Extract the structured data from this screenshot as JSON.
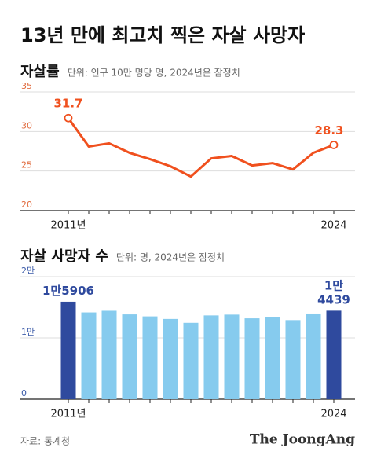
{
  "title": "13년 만에 최고치 찍은 자살 사망자",
  "chart_data": [
    {
      "type": "line",
      "title": "자살률",
      "subtitle": "단위: 인구 10만 명당 명, 2024년은 잠정치",
      "categories": [
        "2011년",
        null,
        null,
        null,
        null,
        null,
        null,
        null,
        null,
        null,
        null,
        null,
        null,
        "2024"
      ],
      "values": [
        31.7,
        28.1,
        28.5,
        27.3,
        26.5,
        25.6,
        24.3,
        26.6,
        26.9,
        25.7,
        26.0,
        25.2,
        27.3,
        28.3
      ],
      "labeled": [
        0,
        13
      ],
      "color": "#f0501e",
      "ylim": [
        20,
        35
      ],
      "yticks": [
        20,
        25,
        30,
        35
      ],
      "grid": true
    },
    {
      "type": "bar",
      "title": "자살 사망자 수",
      "subtitle": "단위: 명, 2024년은 잠정치",
      "categories": [
        "2011년",
        null,
        null,
        null,
        null,
        null,
        null,
        null,
        null,
        null,
        null,
        null,
        null,
        "2024"
      ],
      "values": [
        15906,
        14160,
        14427,
        13836,
        13513,
        13092,
        12463,
        13670,
        13799,
        13195,
        13352,
        12906,
        13978,
        14439
      ],
      "value_labels": [
        "1만5906",
        null,
        null,
        null,
        null,
        null,
        null,
        null,
        null,
        null,
        null,
        null,
        null,
        "1만 4439"
      ],
      "colors": [
        "#2f4a9e",
        "#86cbee",
        "#86cbee",
        "#86cbee",
        "#86cbee",
        "#86cbee",
        "#86cbee",
        "#86cbee",
        "#86cbee",
        "#86cbee",
        "#86cbee",
        "#86cbee",
        "#86cbee",
        "#2f4a9e"
      ],
      "ylim": [
        0,
        20000
      ],
      "yticks": [
        0,
        {
          "value": 10000,
          "label": "1만"
        },
        {
          "value": 20000,
          "label": "2만"
        }
      ],
      "grid": true
    }
  ],
  "source": "자료: 통계청",
  "brand": "The JoongAng"
}
